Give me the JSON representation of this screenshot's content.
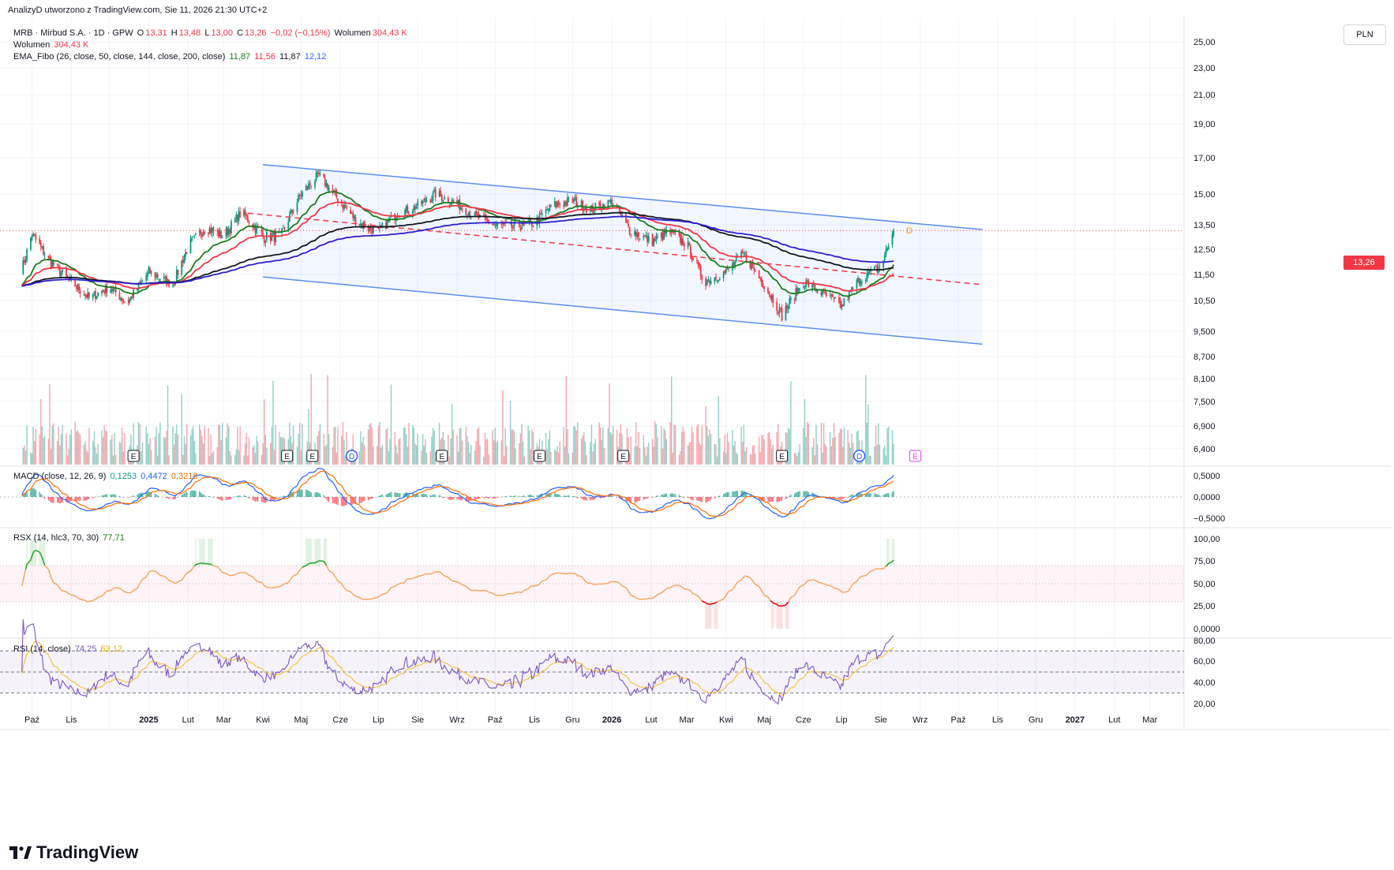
{
  "header": {
    "created_line": "AnalizyD utworzono z TradingView.com, Sie 11, 2026 21:30 UTC+2"
  },
  "legend": {
    "symbol": "MRB · Mirbud S.A. · 1D · GPW",
    "o_label": "O",
    "o_value": "13,31",
    "h_label": "H",
    "h_value": "13,48",
    "l_label": "L",
    "l_value": "13,00",
    "c_label": "C",
    "c_value": "13,26",
    "change": "−0,02 (−0,15%)",
    "vol_label": "Wolumen",
    "vol_value": "304,43 K",
    "vol_line_label": "Wolumen",
    "vol_line_value": "304,43 K",
    "ema_label": "EMA_Fibo (26, close, 50, close, 144, close, 200, close)",
    "ema_values": [
      "11,87",
      "11,56",
      "11,87",
      "12,12"
    ]
  },
  "macd_legend": {
    "label": "MACD (close, 12, 26, 9)",
    "values": [
      "0,1253",
      "0,4472",
      "0,3218"
    ]
  },
  "rsx_legend": {
    "label": "RSX (14, hlc3, 70, 30)",
    "value": "77,71"
  },
  "rsi_legend": {
    "label": "RSI (14, close)",
    "values": [
      "74,25",
      "63,12"
    ]
  },
  "currency": "PLN",
  "last_price_tag": "13,26",
  "brand": "TradingView",
  "colors": {
    "up": "#089981",
    "down": "#f23645",
    "ema26": "#1b7d1b",
    "ema50": "#f23645",
    "ema144": "#131722",
    "ema200": "#2d1fd0",
    "channel": "#5b8def",
    "macd": "#2962ff",
    "signal": "#ff6d00",
    "rsi": "#7e57c2",
    "rsi_ma": "#f5c542"
  },
  "chart_data": {
    "type": "line",
    "price_axis": [
      "25,00",
      "23,00",
      "21,00",
      "19,00",
      "17,00",
      "15,00",
      "13,50",
      "12,50",
      "11,50",
      "10,50",
      "9,500",
      "8,700",
      "8,100",
      "7,500",
      "6,900",
      "6,400"
    ],
    "macd_axis": [
      "0,5000",
      "0,0000",
      "−0,5000"
    ],
    "rsx_axis": [
      "100,00",
      "75,00",
      "50,00",
      "25,00",
      "0,0000"
    ],
    "rsi_axis": [
      "80,00",
      "60,00",
      "40,00",
      "20,00"
    ],
    "time_axis": [
      "Paź",
      "Lis",
      "2025",
      "Lut",
      "Mar",
      "Kwi",
      "Maj",
      "Cze",
      "Lip",
      "Sie",
      "Wrz",
      "Paź",
      "Lis",
      "Gru",
      "2026",
      "Lut",
      "Mar",
      "Kwi",
      "Maj",
      "Cze",
      "Lip",
      "Sie",
      "Wrz",
      "Paź",
      "Lis",
      "Gru",
      "2027",
      "Lut",
      "Mar"
    ],
    "bold_time_labels": [
      "2025",
      "2026",
      "2027"
    ],
    "events": [
      {
        "label": "E",
        "month": "Gru 2024"
      },
      {
        "label": "E",
        "month": "Kwi 2025"
      },
      {
        "label": "E",
        "month": "Maj 2025"
      },
      {
        "label": "D",
        "month": "Cze 2025"
      },
      {
        "label": "E",
        "month": "Sie 2025"
      },
      {
        "label": "E",
        "month": "Lis 2025"
      },
      {
        "label": "E",
        "month": "Sty 2026"
      },
      {
        "label": "E",
        "month": "Maj 2026"
      },
      {
        "label": "D",
        "month": "Lip 2026"
      },
      {
        "label": "E",
        "month": "Wrz 2026"
      }
    ],
    "close_series_points": [
      [
        "2024-09-23",
        11.7
      ],
      [
        "2024-10-01",
        13.1
      ],
      [
        "2024-10-15",
        12.0
      ],
      [
        "2024-11-01",
        11.2
      ],
      [
        "2024-11-15",
        10.6
      ],
      [
        "2024-12-01",
        11.0
      ],
      [
        "2024-12-15",
        10.4
      ],
      [
        "2025-01-01",
        11.6
      ],
      [
        "2025-01-20",
        11.1
      ],
      [
        "2025-02-01",
        12.6
      ],
      [
        "2025-02-15",
        13.4
      ],
      [
        "2025-03-01",
        13.0
      ],
      [
        "2025-03-15",
        14.1
      ],
      [
        "2025-04-01",
        13.0
      ],
      [
        "2025-04-15",
        13.0
      ],
      [
        "2025-05-01",
        15.0
      ],
      [
        "2025-05-15",
        16.0
      ],
      [
        "2025-06-01",
        14.6
      ],
      [
        "2025-06-15",
        13.6
      ],
      [
        "2025-07-01",
        13.2
      ],
      [
        "2025-07-15",
        14.0
      ],
      [
        "2025-08-01",
        14.4
      ],
      [
        "2025-08-15",
        15.0
      ],
      [
        "2025-09-01",
        14.5
      ],
      [
        "2025-09-15",
        13.9
      ],
      [
        "2025-10-01",
        13.5
      ],
      [
        "2025-10-15",
        13.4
      ],
      [
        "2025-11-01",
        13.6
      ],
      [
        "2025-11-15",
        14.4
      ],
      [
        "2025-12-01",
        14.7
      ],
      [
        "2025-12-15",
        14.2
      ],
      [
        "2026-01-01",
        14.6
      ],
      [
        "2026-01-15",
        13.3
      ],
      [
        "2026-02-01",
        12.8
      ],
      [
        "2026-02-15",
        13.2
      ],
      [
        "2026-03-01",
        12.7
      ],
      [
        "2026-03-15",
        11.2
      ],
      [
        "2026-04-01",
        11.6
      ],
      [
        "2026-04-15",
        12.3
      ],
      [
        "2026-05-01",
        11.1
      ],
      [
        "2026-05-15",
        10.0
      ],
      [
        "2026-06-01",
        11.2
      ],
      [
        "2026-06-15",
        10.8
      ],
      [
        "2026-07-01",
        10.3
      ],
      [
        "2026-07-15",
        11.3
      ],
      [
        "2026-08-01",
        11.8
      ],
      [
        "2026-08-11",
        13.26
      ]
    ],
    "channel": {
      "upper": [
        [
          "2025-04-01",
          16.6
        ],
        [
          "2026-10-20",
          13.3
        ]
      ],
      "lower": [
        [
          "2025-04-01",
          11.4
        ],
        [
          "2026-10-20",
          9.1
        ]
      ],
      "mid_dashed": [
        [
          "2025-04-01",
          14.0
        ],
        [
          "2026-10-20",
          11.1
        ]
      ]
    },
    "last_close": 13.26
  }
}
